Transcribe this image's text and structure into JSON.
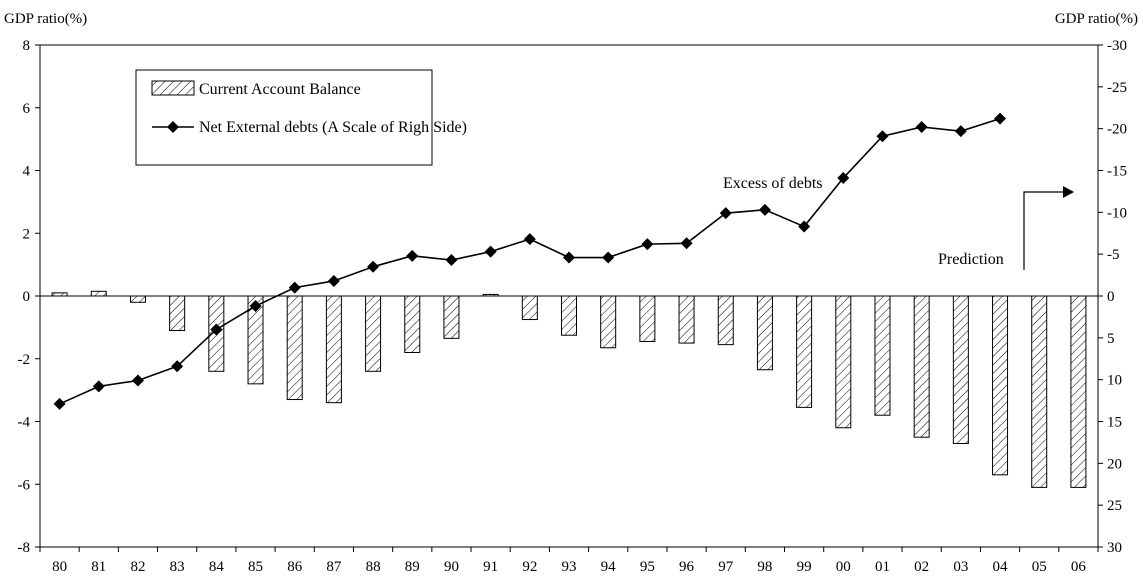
{
  "chart_data": {
    "type": "bar",
    "left_axis_label": "GDP ratio(%)",
    "right_axis_label": "GDP ratio(%)",
    "categories": [
      "80",
      "81",
      "82",
      "83",
      "84",
      "85",
      "86",
      "87",
      "88",
      "89",
      "90",
      "91",
      "92",
      "93",
      "94",
      "95",
      "96",
      "97",
      "98",
      "99",
      "00",
      "01",
      "02",
      "03",
      "04",
      "05",
      "06"
    ],
    "series": [
      {
        "name": "Current Account Balance",
        "type": "bar",
        "axis": "left",
        "values": [
          0.1,
          0.15,
          -0.2,
          -1.1,
          -2.4,
          -2.8,
          -3.3,
          -3.4,
          -2.4,
          -1.8,
          -1.35,
          0.05,
          -0.75,
          -1.25,
          -1.65,
          -1.45,
          -1.5,
          -1.55,
          -2.35,
          -3.55,
          -4.2,
          -3.8,
          -4.5,
          -4.7,
          -5.7,
          -6.1,
          -6.1
        ]
      },
      {
        "name": "Net External debts (A Scale of Righ Side)",
        "type": "line",
        "axis": "right",
        "values": [
          12.9,
          10.8,
          10.1,
          8.4,
          4.0,
          1.2,
          -1.0,
          -1.8,
          -3.5,
          -4.8,
          -4.3,
          -5.3,
          -6.8,
          -4.6,
          -4.6,
          -6.2,
          -6.3,
          -9.9,
          -10.3,
          -8.3,
          -14.1,
          -19.1,
          -20.2,
          -19.7,
          -21.2,
          null,
          null
        ]
      }
    ],
    "left_ylim": [
      -8,
      8
    ],
    "left_yticks": [
      8,
      6,
      4,
      2,
      0,
      -2,
      -4,
      -6,
      -8
    ],
    "right_ylim": [
      30,
      -30
    ],
    "right_yticks": [
      -30,
      -25,
      -20,
      -15,
      -10,
      -5,
      0,
      5,
      10,
      15,
      20,
      25,
      30
    ],
    "annotations": {
      "excess": "Excess of debts",
      "prediction": "Prediction"
    },
    "legend_position": "top-left",
    "grid": false
  }
}
